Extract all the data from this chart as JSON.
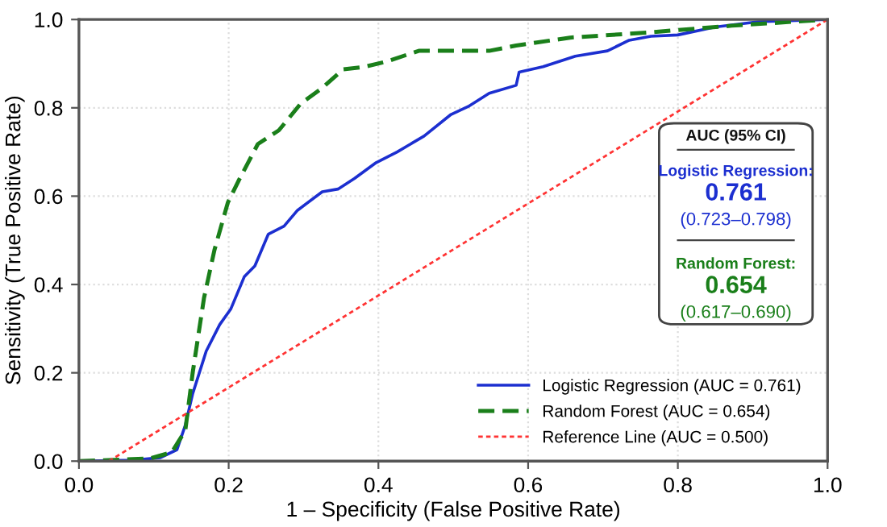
{
  "chart_data": {
    "type": "line",
    "xlabel": "1 – Specificity (False Positive Rate)",
    "ylabel": "Sensitivity (True Positive Rate)",
    "xlim": [
      0,
      1
    ],
    "ylim": [
      0,
      1
    ],
    "xticks": [
      {
        "value": 0,
        "label": "0.0"
      },
      0.2,
      0.4,
      0.6,
      0.8,
      {
        "value": 1,
        "label": "1.0"
      }
    ],
    "yticks": [
      {
        "value": 0,
        "label": "0.0"
      },
      0.2,
      0.4,
      0.6,
      0.8,
      {
        "value": 1,
        "label": "1.0"
      }
    ],
    "grid": true,
    "legend": "bottom right",
    "annotations": [
      "AUC (95% CI)",
      "Logistic Regression:",
      "0.761",
      "(0.723–0.798)",
      "Random Forest:",
      "0.654",
      "(0.617–0.690)"
    ],
    "series": [
      {
        "name": "Logistic Regression (AUC = 0.761)",
        "color": "#1c2fd0",
        "line_style": "solid",
        "x": [
          0,
          0.073,
          0.109,
          0.131,
          0.142,
          0.152,
          0.17,
          0.188,
          0.203,
          0.221,
          0.235,
          0.253,
          0.274,
          0.292,
          0.325,
          0.346,
          0.368,
          0.397,
          0.425,
          0.461,
          0.497,
          0.52,
          0.548,
          0.584,
          0.588,
          0.62,
          0.663,
          0.706,
          0.735,
          0.764,
          0.8,
          0.85,
          0.907,
          1.0
        ],
        "values": [
          0,
          0.002,
          0.008,
          0.026,
          0.081,
          0.153,
          0.249,
          0.309,
          0.345,
          0.418,
          0.442,
          0.514,
          0.532,
          0.568,
          0.61,
          0.616,
          0.64,
          0.676,
          0.7,
          0.736,
          0.785,
          0.803,
          0.833,
          0.851,
          0.881,
          0.893,
          0.917,
          0.929,
          0.953,
          0.962,
          0.965,
          0.983,
          0.995,
          1.0
        ]
      },
      {
        "name": "Random Forest (AUC = 0.654)",
        "color": "#1a7f1a",
        "line_style": "dashed",
        "x": [
          0,
          0.095,
          0.124,
          0.142,
          0.152,
          0.167,
          0.181,
          0.199,
          0.213,
          0.239,
          0.267,
          0.296,
          0.325,
          0.353,
          0.382,
          0.411,
          0.454,
          0.497,
          0.548,
          0.584,
          0.656,
          0.764,
          0.872,
          1.0
        ],
        "values": [
          0,
          0.006,
          0.02,
          0.069,
          0.201,
          0.369,
          0.478,
          0.586,
          0.634,
          0.718,
          0.749,
          0.809,
          0.845,
          0.887,
          0.893,
          0.905,
          0.929,
          0.929,
          0.929,
          0.941,
          0.959,
          0.971,
          0.986,
          1.0
        ]
      },
      {
        "name": "Reference Line (AUC = 0.500)",
        "color": "#ff3333",
        "line_style": "dotted",
        "x": [
          0.04,
          1.0
        ],
        "values": [
          0,
          1.0
        ]
      }
    ]
  }
}
